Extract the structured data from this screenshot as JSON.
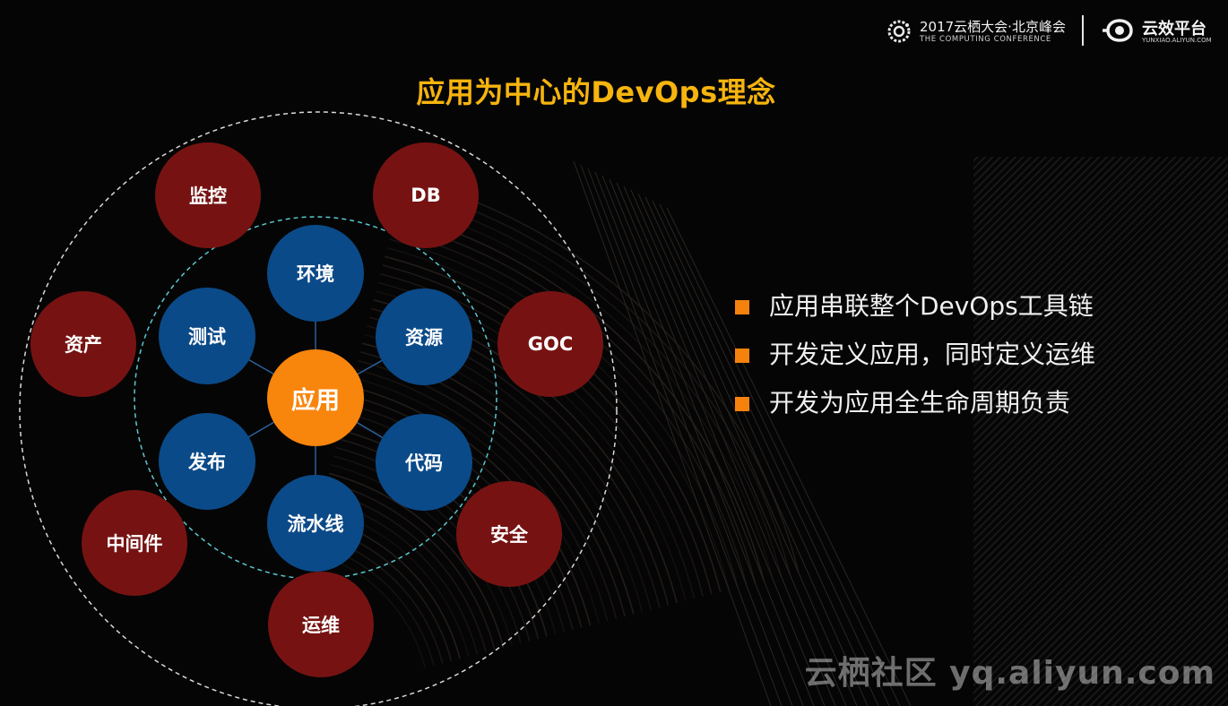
{
  "header": {
    "conference_title": "2017云栖大会·北京峰会",
    "conference_subtitle": "THE COMPUTING CONFERENCE",
    "brand_title": "云效平台",
    "brand_subtitle": "YUNXIAO.ALIYUN.COM"
  },
  "title": "应用为中心的DevOps理念",
  "diagram": {
    "center": "应用",
    "inner_nodes": [
      "环境",
      "资源",
      "代码",
      "流水线",
      "发布",
      "测试"
    ],
    "outer_nodes": [
      "监控",
      "DB",
      "资产",
      "GOC",
      "中间件",
      "安全",
      "运维"
    ]
  },
  "bullets": [
    "应用串联整个DevOps工具链",
    "开发定义应用，同时定义运维",
    "开发为应用全生命周期负责"
  ],
  "watermark": "云栖社区 yq.aliyun.com",
  "colors": {
    "title": "#f6b40e",
    "center_node": "#f8850c",
    "inner_node": "#0b4a88",
    "outer_node": "#761312",
    "bullet_mark": "#f5820d",
    "background": "#050505"
  }
}
